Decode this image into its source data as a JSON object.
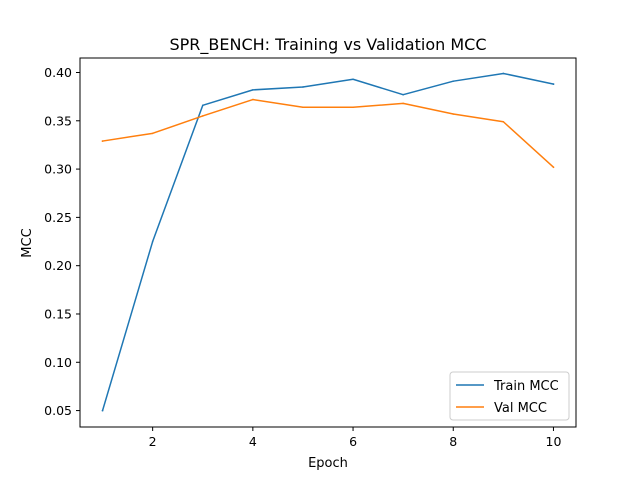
{
  "chart_data": {
    "type": "line",
    "title": "SPR_BENCH: Training vs Validation MCC",
    "xlabel": "Epoch",
    "ylabel": "MCC",
    "x": [
      1,
      2,
      3,
      4,
      5,
      6,
      7,
      8,
      9,
      10
    ],
    "xlim": [
      0.55,
      10.45
    ],
    "ylim": [
      0.033,
      0.415
    ],
    "x_ticks": [
      2,
      4,
      6,
      8,
      10
    ],
    "x_tick_labels": [
      "2",
      "4",
      "6",
      "8",
      "10"
    ],
    "y_ticks": [
      0.05,
      0.1,
      0.15,
      0.2,
      0.25,
      0.3,
      0.35,
      0.4
    ],
    "y_tick_labels": [
      "0.05",
      "0.10",
      "0.15",
      "0.20",
      "0.25",
      "0.30",
      "0.35",
      "0.40"
    ],
    "grid": false,
    "legend_position": "lower-right",
    "series": [
      {
        "name": "Train MCC",
        "color": "#1f77b4",
        "values": [
          0.05,
          0.225,
          0.366,
          0.382,
          0.385,
          0.393,
          0.377,
          0.391,
          0.399,
          0.388
        ]
      },
      {
        "name": "Val MCC",
        "color": "#ff7f0e",
        "values": [
          0.329,
          0.337,
          0.355,
          0.372,
          0.364,
          0.364,
          0.368,
          0.357,
          0.349,
          0.302
        ]
      }
    ]
  }
}
